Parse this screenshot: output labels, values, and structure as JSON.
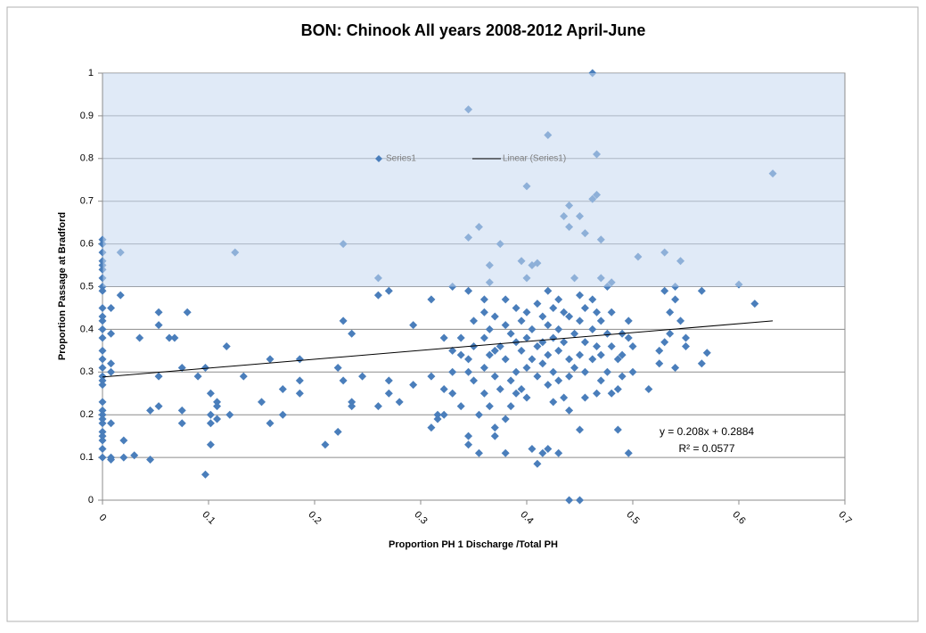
{
  "chart_data": {
    "type": "scatter",
    "title": "BON: Chinook All years 2008-2012 April-June",
    "xlabel": "Proportion PH 1 Discharge /Total PH",
    "ylabel": "Proportion Passage at Bradford",
    "xlim": [
      0,
      0.7
    ],
    "ylim": [
      0,
      1
    ],
    "xticks": [
      0,
      0.1,
      0.2,
      0.3,
      0.4,
      0.5,
      0.6,
      0.7
    ],
    "yticks": [
      0,
      0.1,
      0.2,
      0.3,
      0.4,
      0.5,
      0.6,
      0.7,
      0.8,
      0.9,
      1
    ],
    "grid": true,
    "legend_position": "top",
    "highlight_ylim": [
      0.5,
      1
    ],
    "highlight_color": "rgba(198,217,240,0.55)",
    "series": [
      {
        "name": "Series1",
        "color": "#4a7ebb",
        "x": [
          0,
          0,
          0,
          0,
          0,
          0,
          0,
          0,
          0,
          0,
          0,
          0,
          0,
          0,
          0,
          0,
          0,
          0,
          0,
          0,
          0,
          0,
          0,
          0,
          0,
          0,
          0,
          0,
          0,
          0,
          0.008,
          0.008,
          0.008,
          0.008,
          0.008,
          0.008,
          0.008,
          0.017,
          0.017,
          0.02,
          0.02,
          0.03,
          0.035,
          0.045,
          0.045,
          0.053,
          0.053,
          0.053,
          0.053,
          0.063,
          0.068,
          0.075,
          0.075,
          0.075,
          0.08,
          0.09,
          0.097,
          0.097,
          0.102,
          0.102,
          0.102,
          0.102,
          0.108,
          0.108,
          0.108,
          0.117,
          0.12,
          0.125,
          0.133,
          0.15,
          0.158,
          0.158,
          0.17,
          0.17,
          0.186,
          0.186,
          0.186,
          0.21,
          0.222,
          0.222,
          0.227,
          0.227,
          0.227,
          0.235,
          0.235,
          0.235,
          0.245,
          0.26,
          0.26,
          0.26,
          0.27,
          0.27,
          0.27,
          0.28,
          0.293,
          0.293,
          0.31,
          0.31,
          0.31,
          0.316,
          0.316,
          0.322,
          0.322,
          0.322,
          0.33,
          0.33,
          0.33,
          0.33,
          0.338,
          0.338,
          0.338,
          0.345,
          0.345,
          0.345,
          0.345,
          0.345,
          0.345,
          0.345,
          0.35,
          0.35,
          0.35,
          0.355,
          0.355,
          0.355,
          0.36,
          0.36,
          0.36,
          0.36,
          0.36,
          0.365,
          0.365,
          0.365,
          0.365,
          0.365,
          0.37,
          0.37,
          0.37,
          0.37,
          0.37,
          0.375,
          0.375,
          0.375,
          0.38,
          0.38,
          0.38,
          0.38,
          0.38,
          0.385,
          0.385,
          0.385,
          0.39,
          0.39,
          0.39,
          0.39,
          0.395,
          0.395,
          0.395,
          0.395,
          0.4,
          0.4,
          0.4,
          0.4,
          0.4,
          0.4,
          0.405,
          0.405,
          0.405,
          0.405,
          0.41,
          0.41,
          0.41,
          0.41,
          0.41,
          0.415,
          0.415,
          0.415,
          0.415,
          0.42,
          0.42,
          0.42,
          0.42,
          0.42,
          0.42,
          0.425,
          0.425,
          0.425,
          0.425,
          0.43,
          0.43,
          0.43,
          0.43,
          0.43,
          0.435,
          0.435,
          0.435,
          0.435,
          0.44,
          0.44,
          0.44,
          0.44,
          0.44,
          0.44,
          0.44,
          0.445,
          0.445,
          0.445,
          0.45,
          0.45,
          0.45,
          0.45,
          0.45,
          0.45,
          0.455,
          0.455,
          0.455,
          0.455,
          0.455,
          0.462,
          0.462,
          0.462,
          0.462,
          0.462,
          0.466,
          0.466,
          0.466,
          0.466,
          0.466,
          0.47,
          0.47,
          0.47,
          0.47,
          0.47,
          0.476,
          0.476,
          0.476,
          0.48,
          0.48,
          0.48,
          0.48,
          0.486,
          0.486,
          0.486,
          0.49,
          0.49,
          0.49,
          0.496,
          0.496,
          0.496,
          0.5,
          0.5,
          0.505,
          0.515,
          0.525,
          0.525,
          0.53,
          0.53,
          0.53,
          0.535,
          0.535,
          0.54,
          0.54,
          0.54,
          0.545,
          0.545,
          0.55,
          0.55,
          0.565,
          0.565,
          0.57,
          0.6,
          0.615,
          0.632
        ],
        "values": [
          0.61,
          0.6,
          0.58,
          0.56,
          0.55,
          0.54,
          0.52,
          0.5,
          0.49,
          0.45,
          0.43,
          0.42,
          0.4,
          0.38,
          0.35,
          0.33,
          0.31,
          0.29,
          0.28,
          0.27,
          0.23,
          0.21,
          0.2,
          0.19,
          0.18,
          0.16,
          0.15,
          0.14,
          0.12,
          0.1,
          0.1,
          0.095,
          0.18,
          0.3,
          0.32,
          0.45,
          0.39,
          0.58,
          0.48,
          0.14,
          0.1,
          0.105,
          0.38,
          0.21,
          0.095,
          0.22,
          0.29,
          0.41,
          0.44,
          0.38,
          0.38,
          0.18,
          0.21,
          0.31,
          0.44,
          0.29,
          0.06,
          0.31,
          0.2,
          0.25,
          0.13,
          0.18,
          0.23,
          0.22,
          0.19,
          0.36,
          0.2,
          0.58,
          0.29,
          0.23,
          0.18,
          0.33,
          0.26,
          0.2,
          0.33,
          0.28,
          0.25,
          0.13,
          0.31,
          0.16,
          0.42,
          0.28,
          0.6,
          0.39,
          0.22,
          0.23,
          0.29,
          0.52,
          0.22,
          0.48,
          0.49,
          0.28,
          0.25,
          0.23,
          0.27,
          0.41,
          0.47,
          0.29,
          0.17,
          0.19,
          0.2,
          0.38,
          0.26,
          0.2,
          0.5,
          0.35,
          0.25,
          0.3,
          0.34,
          0.38,
          0.22,
          0.915,
          0.615,
          0.49,
          0.13,
          0.15,
          0.3,
          0.33,
          0.36,
          0.42,
          0.28,
          0.64,
          0.11,
          0.2,
          0.47,
          0.44,
          0.38,
          0.31,
          0.25,
          0.55,
          0.51,
          0.22,
          0.4,
          0.34,
          0.43,
          0.35,
          0.29,
          0.17,
          0.15,
          0.6,
          0.36,
          0.26,
          0.47,
          0.41,
          0.33,
          0.19,
          0.11,
          0.39,
          0.28,
          0.22,
          0.45,
          0.37,
          0.3,
          0.25,
          0.56,
          0.42,
          0.35,
          0.26,
          0.735,
          0.52,
          0.44,
          0.38,
          0.31,
          0.24,
          0.55,
          0.4,
          0.33,
          0.12,
          0.555,
          0.46,
          0.36,
          0.29,
          0.085,
          0.43,
          0.37,
          0.32,
          0.11,
          0.855,
          0.49,
          0.41,
          0.34,
          0.27,
          0.12,
          0.45,
          0.38,
          0.3,
          0.23,
          0.47,
          0.4,
          0.35,
          0.28,
          0.11,
          0.665,
          0.44,
          0.37,
          0.24,
          0.69,
          0.64,
          0.43,
          0.33,
          0.29,
          0.21,
          0,
          0.52,
          0.39,
          0.31,
          0.665,
          0.48,
          0.42,
          0.34,
          0.165,
          0,
          0.625,
          0.45,
          0.37,
          0.3,
          0.24,
          1,
          0.705,
          0.47,
          0.4,
          0.33,
          0.81,
          0.715,
          0.44,
          0.36,
          0.25,
          0.61,
          0.52,
          0.42,
          0.34,
          0.28,
          0.5,
          0.39,
          0.3,
          0.51,
          0.44,
          0.25,
          0.36,
          0.26,
          0.165,
          0.33,
          0.39,
          0.29,
          0.34,
          0.42,
          0.11,
          0.38,
          0.36,
          0.3,
          0.57,
          0.26,
          0.35,
          0.32,
          0.58,
          0.49,
          0.37,
          0.44,
          0.39,
          0.5,
          0.31,
          0.47,
          0.56,
          0.42,
          0.38,
          0.36,
          0.49,
          0.32,
          0.345,
          0.505,
          0.46,
          0.765
        ]
      }
    ],
    "trendline": {
      "name": "Linear (Series1)",
      "color": "#000000",
      "slope": 0.208,
      "intercept": 0.2884,
      "xlim": [
        0,
        0.632
      ],
      "equation": "y = 0.208x + 0.2884",
      "r2_label": "R² = 0.0577"
    }
  }
}
